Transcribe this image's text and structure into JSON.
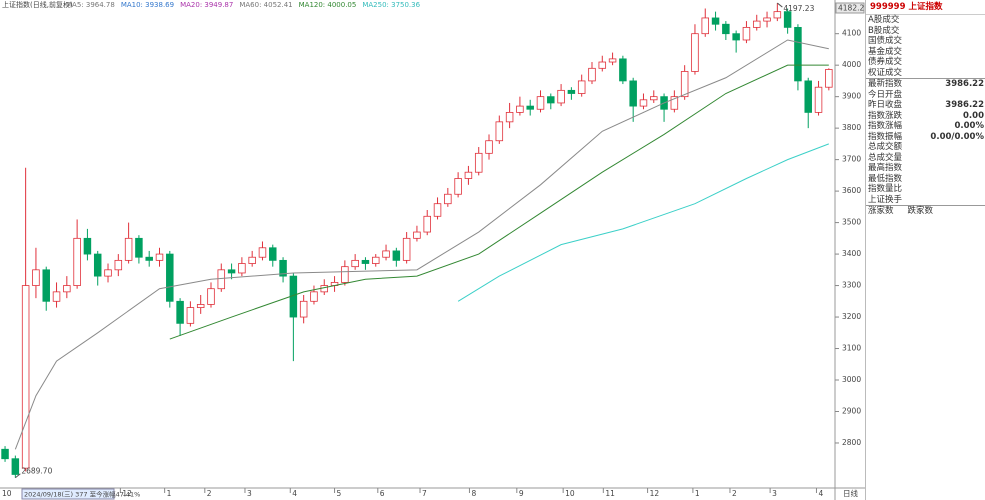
{
  "title": "上证指数(日线,前复权)",
  "indicators": [
    {
      "label": "MA5: 3964.78",
      "color": "#777777"
    },
    {
      "label": "MA10: 3938.69",
      "color": "#3377cc"
    },
    {
      "label": "MA20: 3949.87",
      "color": "#aa33aa"
    },
    {
      "label": "MA60: 4052.41",
      "color": "#777777"
    },
    {
      "label": "MA120: 4000.05",
      "color": "#338833"
    },
    {
      "label": "MA250: 3750.36",
      "color": "#33bbbb"
    }
  ],
  "chart_data": {
    "type": "candlestick",
    "up_color": "#e0303a",
    "down_color": "#00a060",
    "ohlc": [
      [
        2780,
        2790,
        2740,
        2750
      ],
      [
        2750,
        2760,
        2689.7,
        2700
      ],
      [
        2720,
        3674,
        2710,
        3300
      ],
      [
        3300,
        3420,
        3260,
        3350
      ],
      [
        3350,
        3360,
        3220,
        3250
      ],
      [
        3250,
        3310,
        3230,
        3280
      ],
      [
        3280,
        3330,
        3260,
        3300
      ],
      [
        3300,
        3510,
        3290,
        3450
      ],
      [
        3450,
        3480,
        3380,
        3400
      ],
      [
        3400,
        3410,
        3300,
        3330
      ],
      [
        3330,
        3370,
        3310,
        3350
      ],
      [
        3350,
        3400,
        3330,
        3380
      ],
      [
        3380,
        3500,
        3370,
        3450
      ],
      [
        3450,
        3460,
        3370,
        3390
      ],
      [
        3390,
        3410,
        3360,
        3380
      ],
      [
        3380,
        3420,
        3360,
        3400
      ],
      [
        3400,
        3410,
        3230,
        3250
      ],
      [
        3250,
        3260,
        3140,
        3180
      ],
      [
        3180,
        3250,
        3170,
        3230
      ],
      [
        3230,
        3270,
        3210,
        3240
      ],
      [
        3240,
        3310,
        3230,
        3290
      ],
      [
        3290,
        3370,
        3280,
        3350
      ],
      [
        3350,
        3370,
        3320,
        3340
      ],
      [
        3340,
        3390,
        3330,
        3370
      ],
      [
        3370,
        3410,
        3360,
        3390
      ],
      [
        3390,
        3440,
        3380,
        3420
      ],
      [
        3420,
        3430,
        3360,
        3380
      ],
      [
        3380,
        3390,
        3310,
        3330
      ],
      [
        3330,
        3340,
        3060,
        3200
      ],
      [
        3200,
        3270,
        3180,
        3250
      ],
      [
        3250,
        3300,
        3240,
        3280
      ],
      [
        3280,
        3320,
        3270,
        3300
      ],
      [
        3300,
        3330,
        3280,
        3310
      ],
      [
        3310,
        3380,
        3300,
        3360
      ],
      [
        3360,
        3400,
        3350,
        3380
      ],
      [
        3380,
        3390,
        3350,
        3370
      ],
      [
        3370,
        3400,
        3360,
        3390
      ],
      [
        3390,
        3430,
        3380,
        3410
      ],
      [
        3410,
        3420,
        3360,
        3380
      ],
      [
        3380,
        3470,
        3370,
        3450
      ],
      [
        3450,
        3490,
        3440,
        3470
      ],
      [
        3470,
        3540,
        3460,
        3520
      ],
      [
        3520,
        3580,
        3510,
        3560
      ],
      [
        3560,
        3610,
        3550,
        3590
      ],
      [
        3590,
        3660,
        3580,
        3640
      ],
      [
        3640,
        3680,
        3620,
        3660
      ],
      [
        3660,
        3740,
        3650,
        3720
      ],
      [
        3720,
        3780,
        3700,
        3760
      ],
      [
        3760,
        3840,
        3750,
        3820
      ],
      [
        3820,
        3880,
        3800,
        3850
      ],
      [
        3850,
        3900,
        3840,
        3870
      ],
      [
        3870,
        3890,
        3840,
        3860
      ],
      [
        3860,
        3920,
        3850,
        3900
      ],
      [
        3900,
        3910,
        3860,
        3880
      ],
      [
        3880,
        3940,
        3870,
        3920
      ],
      [
        3920,
        3930,
        3890,
        3910
      ],
      [
        3910,
        3970,
        3900,
        3950
      ],
      [
        3950,
        4010,
        3940,
        3990
      ],
      [
        3990,
        4030,
        3980,
        4010
      ],
      [
        4010,
        4040,
        4000,
        4020
      ],
      [
        4020,
        4030,
        3940,
        3950
      ],
      [
        3950,
        3960,
        3820,
        3870
      ],
      [
        3870,
        3910,
        3860,
        3890
      ],
      [
        3890,
        3920,
        3880,
        3900
      ],
      [
        3900,
        3910,
        3820,
        3860
      ],
      [
        3860,
        3920,
        3850,
        3900
      ],
      [
        3900,
        4000,
        3890,
        3980
      ],
      [
        3980,
        4130,
        3970,
        4100
      ],
      [
        4100,
        4180,
        4090,
        4150
      ],
      [
        4150,
        4170,
        4110,
        4130
      ],
      [
        4130,
        4140,
        4080,
        4100
      ],
      [
        4100,
        4110,
        4040,
        4080
      ],
      [
        4080,
        4140,
        4070,
        4120
      ],
      [
        4120,
        4160,
        4110,
        4140
      ],
      [
        4140,
        4170,
        4120,
        4150
      ],
      [
        4150,
        4197.23,
        4140,
        4170
      ],
      [
        4170,
        4180,
        4100,
        4120
      ],
      [
        4120,
        4130,
        3920,
        3950
      ],
      [
        3950,
        3960,
        3800,
        3850
      ],
      [
        3850,
        3950,
        3840,
        3930
      ],
      [
        3930,
        3990,
        3920,
        3986.22
      ]
    ],
    "series": [
      {
        "name": "MA60",
        "color": "#8a8a8a",
        "x": [
          1,
          3,
          5,
          9,
          15,
          20,
          28,
          40,
          46,
          52,
          58,
          64,
          70,
          76,
          80
        ],
        "values": [
          2780,
          2950,
          3060,
          3150,
          3290,
          3320,
          3340,
          3350,
          3470,
          3620,
          3790,
          3880,
          3960,
          4080,
          4052
        ]
      },
      {
        "name": "MA120",
        "color": "#338833",
        "x": [
          16,
          22,
          29,
          35,
          40,
          46,
          52,
          58,
          64,
          70,
          76,
          80
        ],
        "values": [
          3130,
          3200,
          3280,
          3320,
          3330,
          3400,
          3530,
          3660,
          3780,
          3910,
          4000,
          4000
        ]
      },
      {
        "name": "MA250",
        "color": "#3cd0c8",
        "x": [
          44,
          48,
          54,
          60,
          67,
          72,
          76,
          80
        ],
        "values": [
          3250,
          3330,
          3430,
          3480,
          3560,
          3640,
          3700,
          3750
        ]
      }
    ],
    "xlim": [
      -0.49,
      80.6
    ],
    "ylim": [
      2657,
      4207
    ],
    "yticks": [
      2800,
      2900,
      3000,
      3100,
      3200,
      3300,
      3400,
      3500,
      3600,
      3700,
      3800,
      3900,
      4000,
      4100
    ],
    "xticks": [
      {
        "value": 11.2,
        "label": "12"
      },
      {
        "value": 15.5,
        "label": "1"
      },
      {
        "value": 19.4,
        "label": "2"
      },
      {
        "value": 23.3,
        "label": "3"
      },
      {
        "value": 27.7,
        "label": "4"
      },
      {
        "value": 32,
        "label": "5"
      },
      {
        "value": 36.2,
        "label": "6"
      },
      {
        "value": 40.3,
        "label": "7"
      },
      {
        "value": 45.1,
        "label": "8"
      },
      {
        "value": 49.7,
        "label": "9"
      },
      {
        "value": 54.2,
        "label": "10"
      },
      {
        "value": 58.1,
        "label": "11"
      },
      {
        "value": 62.4,
        "label": "12"
      },
      {
        "value": 66.8,
        "label": "1"
      },
      {
        "value": 70.4,
        "label": "2"
      },
      {
        "value": 74.3,
        "label": "3"
      },
      {
        "value": 78.8,
        "label": "4"
      }
    ],
    "annotations": [
      {
        "label": "4197.23",
        "value": 4197.23
      },
      {
        "label": "2689.70",
        "value": 2689.7
      }
    ],
    "cursor_label": "4182.2",
    "hover_label": "2024/09/18(三) 377 至今涨幅47.41%",
    "start_label": "10",
    "period_label": "日线"
  },
  "panel": {
    "code": "999999",
    "name": "上证指数",
    "volume_rows": [
      "A股成交",
      "B股成交",
      "国债成交",
      "基金成交",
      "债券成交",
      "权证成交"
    ],
    "rows": [
      {
        "label": "最新指数",
        "value": "3986.22"
      },
      {
        "label": "今日开盘",
        "value": ""
      },
      {
        "label": "昨日收盘",
        "value": "3986.22"
      },
      {
        "label": "指数涨跌",
        "value": "0.00"
      },
      {
        "label": "指数涨幅",
        "value": "0.00%"
      },
      {
        "label": "指数振幅",
        "value": "0.00/0.00%"
      },
      {
        "label": "总成交额",
        "value": ""
      },
      {
        "label": "总成交量",
        "value": ""
      },
      {
        "label": "最高指数",
        "value": ""
      },
      {
        "label": "最低指数",
        "value": ""
      },
      {
        "label": "指数量比",
        "value": ""
      },
      {
        "label": "上证换手",
        "value": ""
      }
    ],
    "breadth": [
      "涨家数",
      "跌家数"
    ]
  }
}
